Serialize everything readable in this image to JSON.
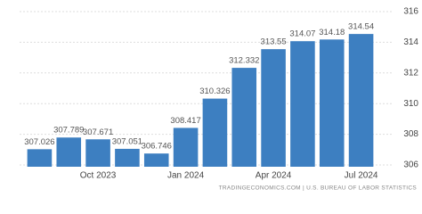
{
  "chart_data": {
    "type": "bar",
    "categories": [
      null,
      null,
      "Oct 2023",
      null,
      null,
      "Jan 2024",
      null,
      null,
      "Apr 2024",
      null,
      null,
      "Jul 2024"
    ],
    "values": [
      307.026,
      307.789,
      307.671,
      307.051,
      306.746,
      308.417,
      310.326,
      312.332,
      313.55,
      314.07,
      314.18,
      314.54
    ],
    "color": "#3d7fc1",
    "ylim": [
      306,
      316
    ],
    "yticks": [
      306,
      308,
      310,
      312,
      314,
      316
    ],
    "grid": true,
    "source": "TRADINGECONOMICS.COM | U.S. BUREAU OF LABOR STATISTICS"
  }
}
